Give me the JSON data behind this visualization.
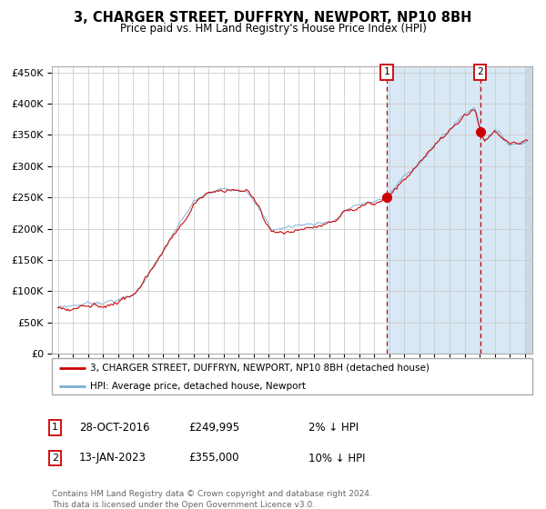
{
  "title": "3, CHARGER STREET, DUFFRYN, NEWPORT, NP10 8BH",
  "subtitle": "Price paid vs. HM Land Registry's House Price Index (HPI)",
  "legend_line1": "3, CHARGER STREET, DUFFRYN, NEWPORT, NP10 8BH (detached house)",
  "legend_line2": "HPI: Average price, detached house, Newport",
  "sale1_date": "28-OCT-2016",
  "sale1_price": "£249,995",
  "sale1_hpi": "2% ↓ HPI",
  "sale2_date": "13-JAN-2023",
  "sale2_price": "£355,000",
  "sale2_hpi": "10% ↓ HPI",
  "footer": "Contains HM Land Registry data © Crown copyright and database right 2024.\nThis data is licensed under the Open Government Licence v3.0.",
  "hpi_color": "#7ab0d4",
  "price_color": "#cc0000",
  "background_color": "#ffffff",
  "shade_color": "#d8e8f5",
  "grid_color": "#cccccc",
  "sale1_x": 2016.83,
  "sale1_y": 249995,
  "sale2_x": 2023.04,
  "sale2_y": 355000,
  "ylim": [
    0,
    460000
  ],
  "xlim": [
    1994.6,
    2026.5
  ]
}
